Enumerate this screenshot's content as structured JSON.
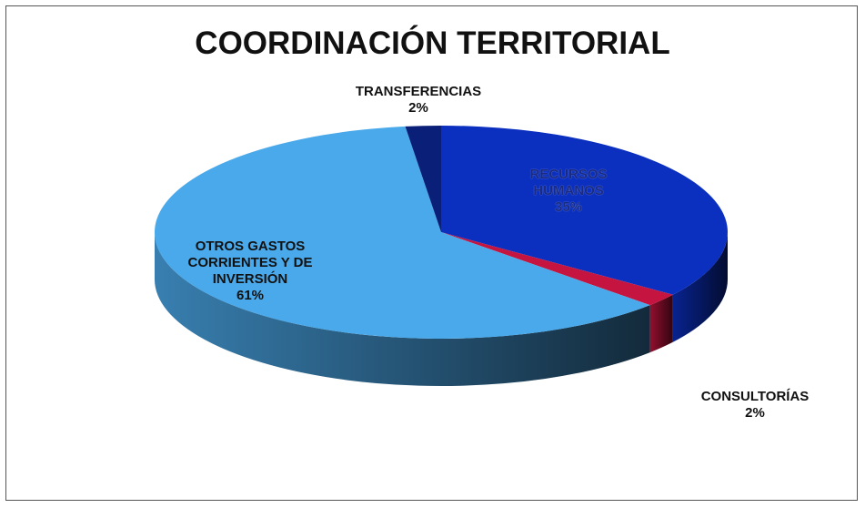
{
  "chart_data": {
    "type": "pie",
    "title": "COORDINACIÓN TERRITORIAL",
    "categories": [
      "RECURSOS HUMANOS",
      "CONSULTORÍAS",
      "OTROS GASTOS CORRIENTES Y DE INVERSIÓN",
      "TRANSFERENCIAS"
    ],
    "values": [
      35,
      2,
      61,
      2
    ],
    "value_labels": [
      "35%",
      "2%",
      "61%",
      "2%"
    ],
    "colors": [
      "#0b2fbf",
      "#c4143f",
      "#4aa9ea",
      "#0a1f78"
    ]
  }
}
